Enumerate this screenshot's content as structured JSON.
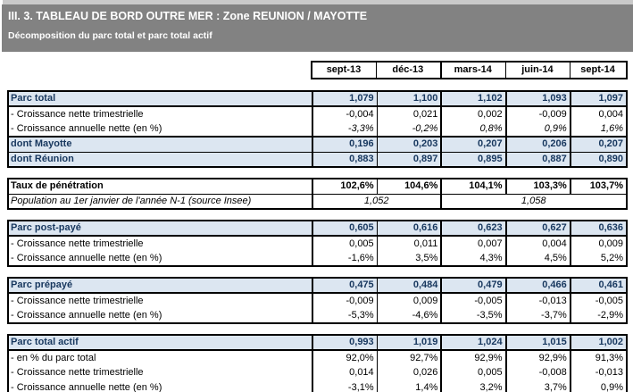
{
  "header": {
    "title": "III. 3. TABLEAU DE BORD OUTRE MER : Zone REUNION / MAYOTTE",
    "subtitle": "Décomposition du parc total et parc total actif"
  },
  "colors": {
    "title_bar_bg": "#828282",
    "top_strip": "#c9c9c9",
    "highlight_row_bg": "#dce6f1",
    "highlight_text": "#17375e",
    "border": "#000000",
    "title_text": "#ffffff"
  },
  "table": {
    "columns": [
      "sept-13",
      "déc-13",
      "mars-14",
      "juin-14",
      "sept-14"
    ],
    "blocks": [
      {
        "name": "parc-total",
        "rows": [
          {
            "label": "Parc total",
            "type": "head",
            "values": [
              "1,079",
              "1,100",
              "1,102",
              "1,093",
              "1,097"
            ]
          },
          {
            "label": "- Croissance nette trimestrielle",
            "type": "plain",
            "values": [
              "-0,004",
              "0,021",
              "0,002",
              "-0,009",
              "0,004"
            ]
          },
          {
            "label": "- Croissance annuelle nette (en %)",
            "type": "ital",
            "values": [
              "-3,3%",
              "-0,2%",
              "0,8%",
              "0,9%",
              "1,6%"
            ]
          },
          {
            "label": "dont Mayotte",
            "type": "dont2",
            "values": [
              "0,196",
              "0,203",
              "0,207",
              "0,206",
              "0,207"
            ]
          },
          {
            "label": "dont Réunion",
            "type": "dont1",
            "values": [
              "0,883",
              "0,897",
              "0,895",
              "0,887",
              "0,890"
            ]
          }
        ]
      },
      {
        "name": "taux-penetration",
        "rows": [
          {
            "label": "Taux de pénétration",
            "type": "boldw",
            "values": [
              "102,6%",
              "104,6%",
              "104,1%",
              "103,3%",
              "103,7%"
            ]
          },
          {
            "label": "Population au 1er janvier de l'année N-1 (source Insee)",
            "type": "pop",
            "merged": [
              {
                "value": "1,052",
                "span": 2
              },
              {
                "value": "1,058",
                "span": 3
              }
            ]
          }
        ]
      },
      {
        "name": "parc-post-paye",
        "rows": [
          {
            "label": "Parc post-payé",
            "type": "head",
            "values": [
              "0,605",
              "0,616",
              "0,623",
              "0,627",
              "0,636"
            ]
          },
          {
            "label": "- Croissance nette trimestrielle",
            "type": "plain",
            "values": [
              "0,005",
              "0,011",
              "0,007",
              "0,004",
              "0,009"
            ]
          },
          {
            "label": "- Croissance annuelle nette (en %)",
            "type": "plain",
            "values": [
              "-1,6%",
              "3,5%",
              "4,3%",
              "4,5%",
              "5,2%"
            ]
          }
        ]
      },
      {
        "name": "parc-prepaye",
        "rows": [
          {
            "label": "Parc prépayé",
            "type": "head",
            "values": [
              "0,475",
              "0,484",
              "0,479",
              "0,466",
              "0,461"
            ]
          },
          {
            "label": "- Croissance nette trimestrielle",
            "type": "plain",
            "values": [
              "-0,009",
              "0,009",
              "-0,005",
              "-0,013",
              "-0,005"
            ]
          },
          {
            "label": "- Croissance annuelle nette (en %)",
            "type": "plain",
            "values": [
              "-5,3%",
              "-4,6%",
              "-3,5%",
              "-3,7%",
              "-2,9%"
            ]
          }
        ]
      },
      {
        "name": "parc-total-actif",
        "rows": [
          {
            "label": "Parc total actif",
            "type": "head",
            "values": [
              "0,993",
              "1,019",
              "1,024",
              "1,015",
              "1,002"
            ]
          },
          {
            "label": "- en % du parc total",
            "type": "plain",
            "values": [
              "92,0%",
              "92,7%",
              "92,9%",
              "92,9%",
              "91,3%"
            ]
          },
          {
            "label": "- Croissance nette trimestrielle",
            "type": "plain",
            "values": [
              "0,014",
              "0,026",
              "0,005",
              "-0,008",
              "-0,013"
            ]
          },
          {
            "label": "- Croissance annuelle nette (en %)",
            "type": "plain",
            "values": [
              "-3,1%",
              "1,4%",
              "3,2%",
              "3,7%",
              "0,9%"
            ]
          }
        ]
      }
    ]
  }
}
